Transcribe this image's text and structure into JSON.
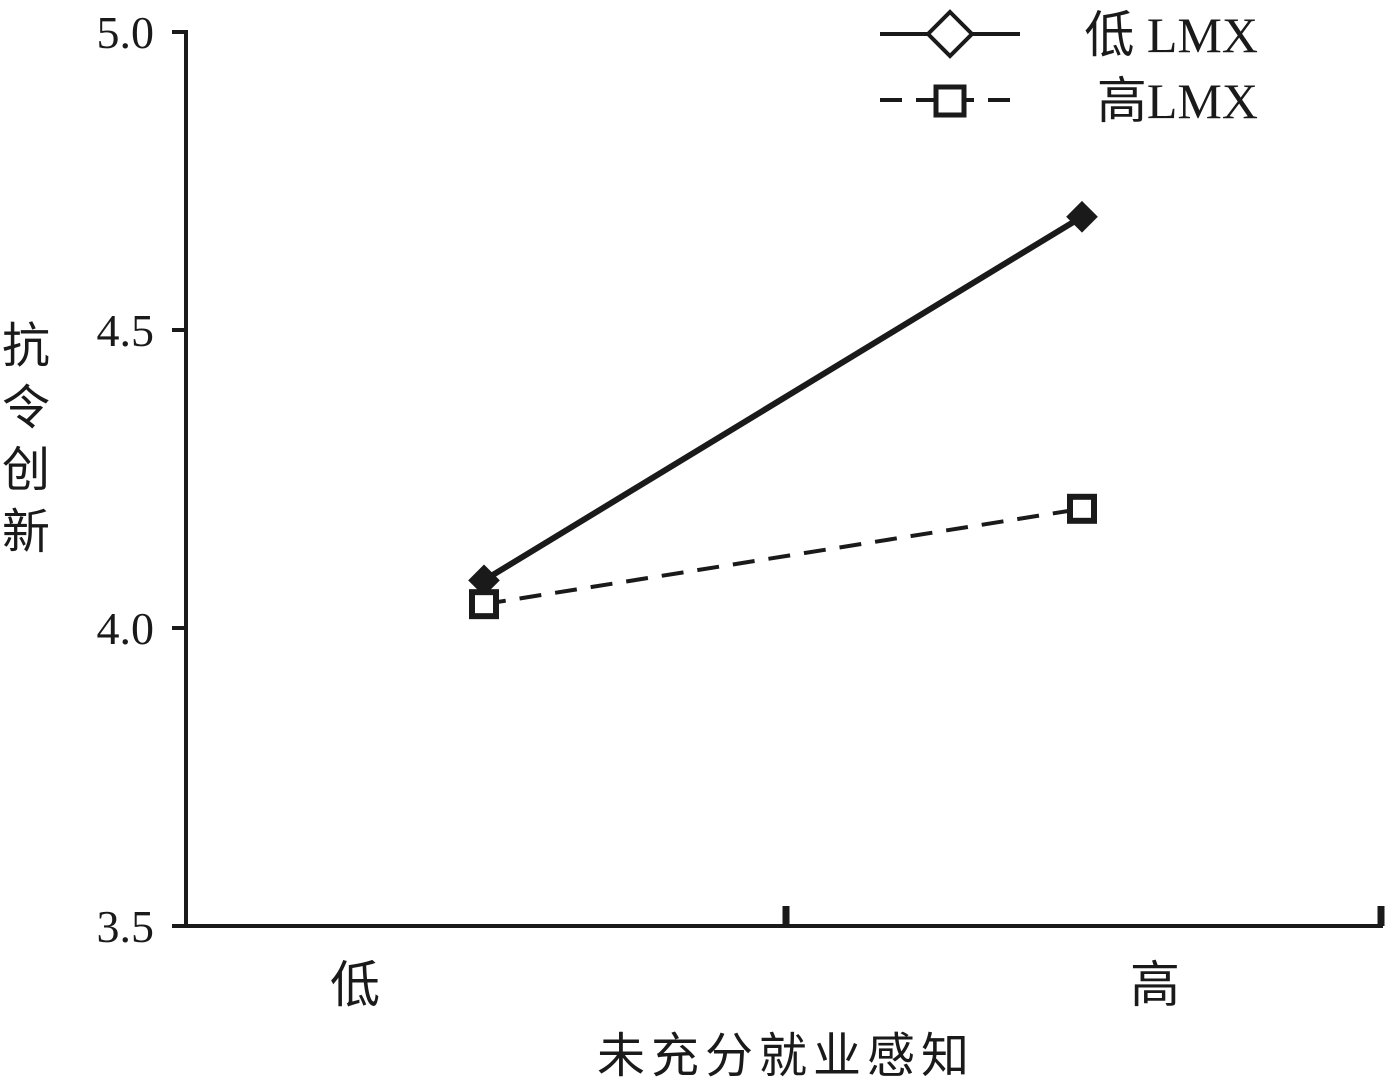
{
  "chart_data": {
    "type": "line",
    "title": "",
    "xlabel": "未充分就业感知",
    "ylabel": "抗令创新",
    "categories": [
      "低",
      "高"
    ],
    "ylim": [
      3.5,
      5.0
    ],
    "yticks": [
      "3.5",
      "4.0",
      "4.5",
      "5.0"
    ],
    "grid": false,
    "legend_position": "top-right",
    "series": [
      {
        "name": "低 LMX",
        "values": [
          4.08,
          4.69
        ],
        "line_style": "solid",
        "marker": "diamond",
        "color": "#1a1a1a"
      },
      {
        "name": "高LMX",
        "values": [
          4.04,
          4.2
        ],
        "line_style": "dashed",
        "marker": "square",
        "color": "#1a1a1a"
      }
    ]
  }
}
